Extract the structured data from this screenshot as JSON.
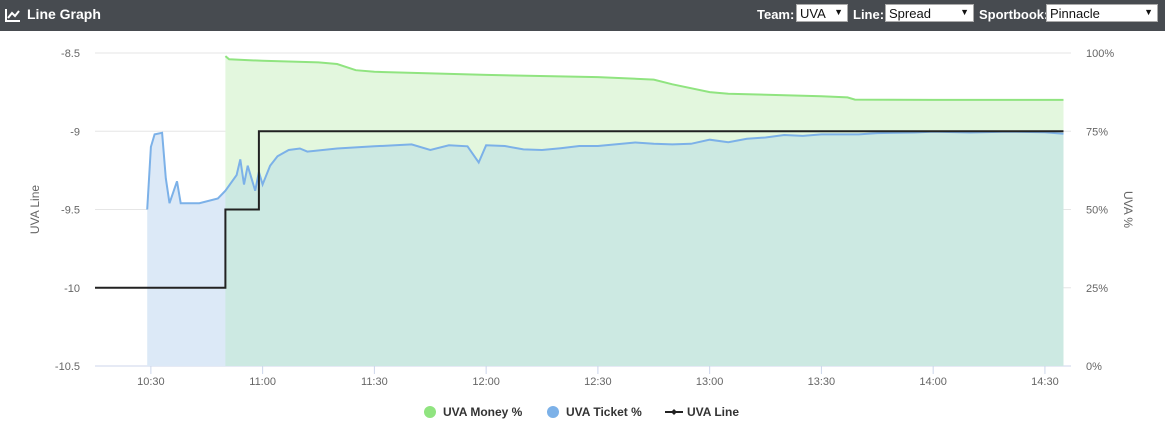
{
  "header": {
    "title": "Line Graph",
    "team_label": "Team:",
    "team_value": "UVA",
    "line_label": "Line:",
    "line_value": "Spread",
    "sportbook_label": "Sportbook:",
    "sportbook_value": "Pinnacle"
  },
  "colors": {
    "header_bg": "#474b50",
    "money": "#90e480",
    "money_fill": "#e3f7de",
    "ticket": "#7cb1e8",
    "ticket_fill": "#dce9f7",
    "overlap_fill": "#cce9e2",
    "line": "#222222"
  },
  "chart_data": {
    "type": "line",
    "title": "",
    "xlabel": "",
    "ylabel_left": "UVA Line",
    "ylabel_right": "UVA %",
    "x_ticks": [
      "10:30",
      "11:00",
      "11:30",
      "12:00",
      "12:30",
      "13:00",
      "13:30",
      "14:00",
      "14:30"
    ],
    "y_left_ticks": [
      "-8.5",
      "-9",
      "-9.5",
      "-10",
      "-10.5"
    ],
    "y_right_ticks": [
      "100%",
      "75%",
      "50%",
      "25%",
      "0%"
    ],
    "y_left_range": [
      -10.5,
      -8.5
    ],
    "y_right_range": [
      0,
      100
    ],
    "x_range": [
      "10:15",
      "14:37"
    ],
    "grid": true,
    "legend_position": "bottom",
    "legend": [
      "UVA Money %",
      "UVA Ticket %",
      "UVA Line"
    ],
    "series": [
      {
        "name": "UVA Money %",
        "axis": "right",
        "area": true,
        "points": [
          [
            "10:50",
            99
          ],
          [
            "10:51",
            98
          ],
          [
            "11:00",
            97.5
          ],
          [
            "11:15",
            97
          ],
          [
            "11:20",
            96.5
          ],
          [
            "11:25",
            94.5
          ],
          [
            "11:30",
            94
          ],
          [
            "12:00",
            93
          ],
          [
            "12:30",
            92.3
          ],
          [
            "12:45",
            91.5
          ],
          [
            "12:50",
            90
          ],
          [
            "13:00",
            87.5
          ],
          [
            "13:05",
            87
          ],
          [
            "13:30",
            86.2
          ],
          [
            "13:37",
            85.8
          ],
          [
            "13:39",
            85.1
          ],
          [
            "14:00",
            85
          ],
          [
            "14:35",
            85
          ]
        ]
      },
      {
        "name": "UVA Ticket %",
        "axis": "right",
        "area": true,
        "points": [
          [
            "10:29",
            50
          ],
          [
            "10:30",
            70
          ],
          [
            "10:31",
            74
          ],
          [
            "10:33",
            74.5
          ],
          [
            "10:34",
            60
          ],
          [
            "10:35",
            52
          ],
          [
            "10:37",
            59
          ],
          [
            "10:38",
            52
          ],
          [
            "10:43",
            52
          ],
          [
            "10:48",
            53.5
          ],
          [
            "10:50",
            56
          ],
          [
            "10:53",
            61
          ],
          [
            "10:54",
            66
          ],
          [
            "10:55",
            58
          ],
          [
            "10:56",
            64
          ],
          [
            "10:58",
            56
          ],
          [
            "10:59",
            62
          ],
          [
            "11:00",
            58
          ],
          [
            "11:02",
            64
          ],
          [
            "11:04",
            67
          ],
          [
            "11:07",
            69
          ],
          [
            "11:10",
            69.5
          ],
          [
            "11:12",
            68.5
          ],
          [
            "11:20",
            69.5
          ],
          [
            "11:30",
            70.2
          ],
          [
            "11:40",
            70.8
          ],
          [
            "11:45",
            69
          ],
          [
            "11:50",
            70.5
          ],
          [
            "11:55",
            70.2
          ],
          [
            "11:58",
            65
          ],
          [
            "12:00",
            70.5
          ],
          [
            "12:05",
            70.3
          ],
          [
            "12:10",
            69.2
          ],
          [
            "12:15",
            69
          ],
          [
            "12:20",
            69.6
          ],
          [
            "12:25",
            70.3
          ],
          [
            "12:30",
            70.3
          ],
          [
            "12:40",
            71.4
          ],
          [
            "12:45",
            71
          ],
          [
            "12:50",
            70.8
          ],
          [
            "12:55",
            71
          ],
          [
            "13:00",
            72.3
          ],
          [
            "13:05",
            71.5
          ],
          [
            "13:10",
            72.6
          ],
          [
            "13:15",
            73
          ],
          [
            "13:20",
            73.8
          ],
          [
            "13:25",
            73.5
          ],
          [
            "13:30",
            74
          ],
          [
            "13:40",
            74
          ],
          [
            "13:45",
            74.4
          ],
          [
            "13:55",
            74.6
          ],
          [
            "14:00",
            74.9
          ],
          [
            "14:10",
            74.6
          ],
          [
            "14:20",
            74.9
          ],
          [
            "14:30",
            74.7
          ],
          [
            "14:35",
            74.2
          ]
        ]
      },
      {
        "name": "UVA Line",
        "axis": "left",
        "step": true,
        "points": [
          [
            "10:15",
            -10
          ],
          [
            "10:50",
            -10
          ],
          [
            "10:50",
            -9.5
          ],
          [
            "10:59",
            -9.5
          ],
          [
            "10:59",
            -9
          ],
          [
            "14:35",
            -9
          ]
        ]
      }
    ]
  }
}
